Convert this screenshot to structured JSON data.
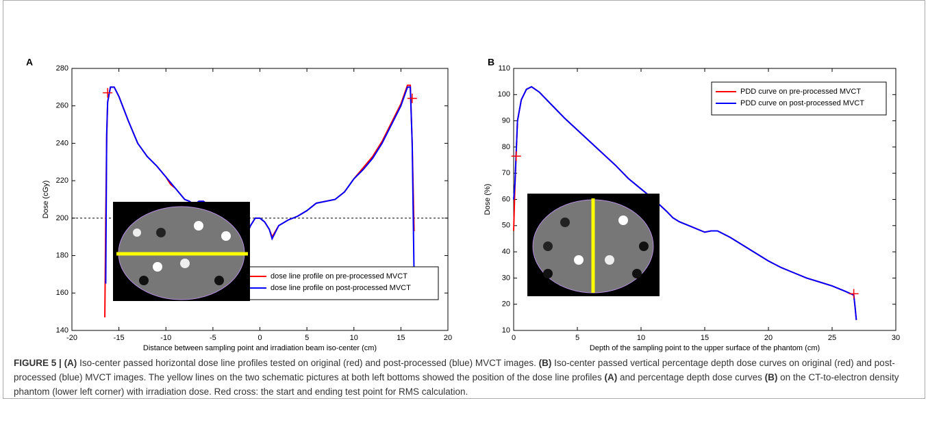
{
  "chart_data": [
    {
      "type": "line",
      "panel_label": "A",
      "xlabel": "Distance between sampling point and irradiation beam iso-center (cm)",
      "ylabel": "Dose (cGy)",
      "xlim": [
        -20,
        20
      ],
      "xticks": [
        -20,
        -15,
        -10,
        -5,
        0,
        5,
        10,
        15,
        20
      ],
      "ylim": [
        140,
        280
      ],
      "yticks": [
        140,
        160,
        180,
        200,
        220,
        240,
        260,
        280
      ],
      "legend": "lower right",
      "reference_line": 200,
      "series": [
        {
          "name": "dose line profile on pre-processed MVCT",
          "color": "#ff0000",
          "x": [
            -16.5,
            -16.4,
            -16.3,
            -16.2,
            -15.9,
            -15.5,
            -15,
            -14,
            -13,
            -12,
            -11,
            -10,
            -9.5,
            -9,
            -8,
            -7.5,
            -7,
            -6.5,
            -6,
            -5.5,
            -5,
            -4.5,
            -4,
            -3,
            -2,
            -1.5,
            -1,
            -0.5,
            0,
            0.5,
            1,
            1.3,
            2,
            3,
            4,
            5,
            6,
            7,
            8,
            9,
            10,
            11,
            12,
            13,
            14,
            15,
            15.7,
            16,
            16.2,
            16.4
          ],
          "values": [
            147,
            200,
            243,
            262,
            270,
            270,
            265,
            252,
            240,
            233,
            228,
            222,
            218,
            216,
            210,
            209,
            207,
            209,
            209,
            207,
            203,
            201,
            200,
            199,
            195,
            190,
            196,
            200,
            200,
            198,
            194,
            190,
            196,
            199,
            201,
            204,
            208,
            209,
            210,
            214,
            221,
            227,
            233,
            241,
            251,
            261,
            271,
            271,
            240,
            193
          ]
        },
        {
          "name": "dose line profile on post-processed MVCT",
          "color": "#0000ff",
          "x": [
            -16.4,
            -16.3,
            -16.2,
            -15.9,
            -15.5,
            -15,
            -14,
            -13,
            -12,
            -11,
            -10,
            -9,
            -8,
            -7.5,
            -7,
            -6.5,
            -6,
            -5.5,
            -5,
            -4.5,
            -4,
            -3,
            -2,
            -1.5,
            -1,
            -0.5,
            0,
            0.5,
            1,
            1.3,
            2,
            3,
            4,
            5,
            6,
            7,
            8,
            9,
            10,
            11,
            12,
            13,
            14,
            15,
            15.7,
            16,
            16.2,
            16.4
          ],
          "values": [
            165,
            245,
            262,
            270,
            270,
            265,
            252,
            240,
            233,
            228,
            222,
            216,
            210,
            209,
            207,
            209,
            209,
            207,
            203,
            201,
            200,
            199,
            195,
            190,
            196,
            200,
            200,
            198,
            194,
            189,
            196,
            199,
            201,
            204,
            208,
            209,
            210,
            214,
            221,
            226,
            232,
            240,
            250,
            260,
            270,
            270,
            240,
            170
          ]
        }
      ],
      "markers": {
        "color": "#ff0000",
        "x": [
          -16.2,
          16.2
        ],
        "y": [
          267,
          264
        ]
      }
    },
    {
      "type": "line",
      "panel_label": "B",
      "xlabel": "Depth of the sampling point to the upper surface of the phantom (cm)",
      "ylabel": "Dose (%)",
      "xlim": [
        0,
        30
      ],
      "xticks": [
        0,
        5,
        10,
        15,
        20,
        25,
        30
      ],
      "ylim": [
        10,
        110
      ],
      "yticks": [
        10,
        20,
        30,
        40,
        50,
        60,
        70,
        80,
        90,
        100,
        110
      ],
      "legend": "upper right",
      "series": [
        {
          "name": "PDD curve on pre-processed MVCT",
          "color": "#ff0000",
          "x": [
            0,
            0.1,
            0.3,
            0.6,
            1,
            1.4,
            2,
            3,
            4,
            5,
            6,
            7,
            8,
            9,
            10,
            11,
            12,
            12.5,
            13,
            14,
            15,
            15.5,
            16,
            17,
            18,
            19,
            20,
            21,
            22,
            23,
            24,
            25,
            26,
            26.7,
            26.8,
            26.9
          ],
          "values": [
            48,
            65,
            90,
            98,
            102,
            103,
            101,
            96,
            91,
            86.5,
            82,
            77.5,
            73,
            68,
            64,
            60,
            55.5,
            53,
            51.5,
            49.5,
            47.5,
            48,
            48,
            45.5,
            42.5,
            39.5,
            36.5,
            34,
            32,
            30,
            28.5,
            27,
            25,
            23.5,
            19,
            14
          ]
        },
        {
          "name": "PDD curve on post-processed MVCT",
          "color": "#0000ff",
          "x": [
            0,
            0.1,
            0.3,
            0.6,
            1,
            1.4,
            2,
            3,
            4,
            5,
            6,
            7,
            8,
            9,
            10,
            11,
            12,
            12.5,
            13,
            14,
            15,
            15.5,
            16,
            17,
            18,
            19,
            20,
            21,
            22,
            23,
            24,
            25,
            26,
            26.7,
            26.8,
            26.9
          ],
          "values": [
            60,
            66,
            90,
            98,
            102,
            103,
            101,
            96,
            91,
            86.5,
            82,
            77.5,
            73,
            68,
            64,
            60,
            55.5,
            53,
            51.5,
            49.5,
            47.5,
            48,
            48,
            45.5,
            42.5,
            39.5,
            36.5,
            34,
            32,
            30,
            28.5,
            27,
            25,
            23.5,
            19,
            14
          ]
        }
      ],
      "markers": {
        "color": "#ff0000",
        "x": [
          0.2,
          26.7
        ],
        "y": [
          76.5,
          24
        ]
      }
    }
  ],
  "caption": {
    "label": "FIGURE 5 |",
    "segments": [
      {
        "text": "(A)",
        "bold": true
      },
      {
        "text": " Iso-center passed horizontal dose line profiles tested on original (red) and post-processed (blue) MVCT images. ",
        "bold": false
      },
      {
        "text": "(B)",
        "bold": true
      },
      {
        "text": " Iso-center passed vertical percentage depth dose curves on original (red) and post-processed (blue) MVCT images. The yellow lines on the two schematic pictures at both left bottoms showed the position of the dose line profiles ",
        "bold": false
      },
      {
        "text": "(A)",
        "bold": true
      },
      {
        "text": " and percentage depth dose curves ",
        "bold": false
      },
      {
        "text": "(B)",
        "bold": true
      },
      {
        "text": " on the CT-to-electron density phantom (lower left corner) with irradiation dose. Red cross: the start and ending test point for RMS calculation.",
        "bold": false
      }
    ]
  }
}
